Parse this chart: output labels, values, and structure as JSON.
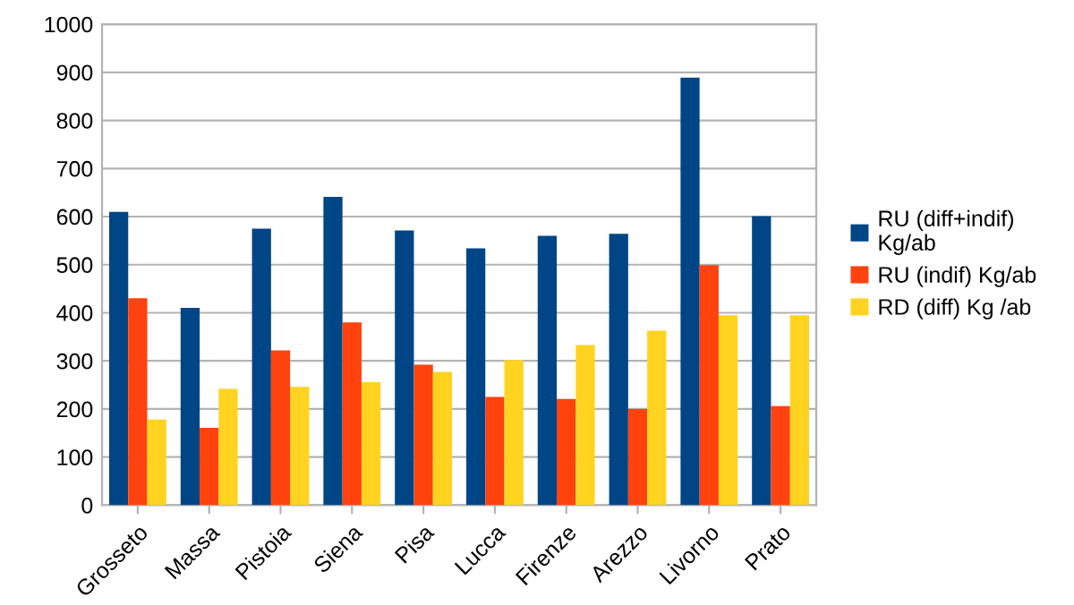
{
  "chart_data": {
    "type": "bar",
    "categories": [
      "Grosseto",
      "Massa",
      "Pistoia",
      "Siena",
      "Pisa",
      "Lucca",
      "Firenze",
      "Arezzo",
      "Livorno",
      "Prato"
    ],
    "series": [
      {
        "name": "RU (diff+indif) Kg/ab",
        "color": "#004586",
        "values": [
          610,
          410,
          575,
          641,
          571,
          534,
          560,
          564,
          889,
          601
        ]
      },
      {
        "name": "RU (indif) Kg/ab",
        "color": "#ff420e",
        "values": [
          430,
          161,
          322,
          380,
          292,
          225,
          221,
          200,
          499,
          206
        ]
      },
      {
        "name": "RD (diff) Kg /ab",
        "color": "#ffd320",
        "values": [
          178,
          242,
          246,
          256,
          277,
          302,
          333,
          363,
          395,
          395
        ]
      }
    ],
    "ylim": [
      0,
      1000
    ],
    "yticks": [
      0,
      100,
      200,
      300,
      400,
      500,
      600,
      700,
      800,
      900,
      1000
    ],
    "grid": "y",
    "legend": "right"
  }
}
